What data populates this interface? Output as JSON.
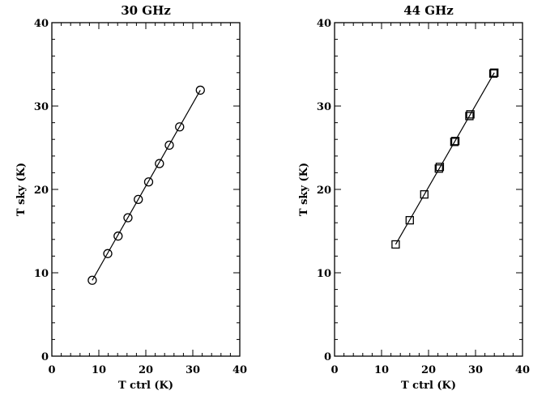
{
  "chart_data": [
    {
      "type": "scatter",
      "title": "30 GHz",
      "xlabel": "T ctrl (K)",
      "ylabel": "T sky (K)",
      "xlim": [
        0,
        40
      ],
      "ylim": [
        0,
        40
      ],
      "xticks": [
        "0",
        "10",
        "20",
        "30",
        "40"
      ],
      "yticks": [
        "0",
        "10",
        "20",
        "30",
        "40"
      ],
      "marker": "circle",
      "points": [
        {
          "x": 8.6,
          "y": 9.1
        },
        {
          "x": 11.9,
          "y": 12.3
        },
        {
          "x": 14.1,
          "y": 14.4
        },
        {
          "x": 16.2,
          "y": 16.6
        },
        {
          "x": 18.4,
          "y": 18.8
        },
        {
          "x": 20.6,
          "y": 20.9
        },
        {
          "x": 22.9,
          "y": 23.1
        },
        {
          "x": 25.0,
          "y": 25.3
        },
        {
          "x": 27.2,
          "y": 27.5
        },
        {
          "x": 31.6,
          "y": 31.9
        }
      ],
      "fit_line": [
        {
          "x": 8.6,
          "y": 9.1
        },
        {
          "x": 31.6,
          "y": 31.9
        }
      ]
    },
    {
      "type": "scatter",
      "title": "44 GHz",
      "xlabel": "T ctrl (K)",
      "ylabel": "T sky (K)",
      "xlim": [
        0,
        40
      ],
      "ylim": [
        0,
        40
      ],
      "xticks": [
        "0",
        "10",
        "20",
        "30",
        "40"
      ],
      "yticks": [
        "0",
        "10",
        "20",
        "30",
        "40"
      ],
      "marker": "square",
      "points": [
        {
          "x": 13.0,
          "y": 13.4
        },
        {
          "x": 16.0,
          "y": 16.3
        },
        {
          "x": 19.1,
          "y": 19.4
        },
        {
          "x": 22.2,
          "y": 22.5
        },
        {
          "x": 22.4,
          "y": 22.7
        },
        {
          "x": 25.5,
          "y": 25.7
        },
        {
          "x": 25.7,
          "y": 25.8
        },
        {
          "x": 28.7,
          "y": 28.8
        },
        {
          "x": 28.9,
          "y": 29.0
        },
        {
          "x": 33.8,
          "y": 33.9
        },
        {
          "x": 34.0,
          "y": 34.0
        }
      ],
      "fit_line": [
        {
          "x": 13.0,
          "y": 13.4
        },
        {
          "x": 34.0,
          "y": 34.0
        }
      ]
    }
  ]
}
